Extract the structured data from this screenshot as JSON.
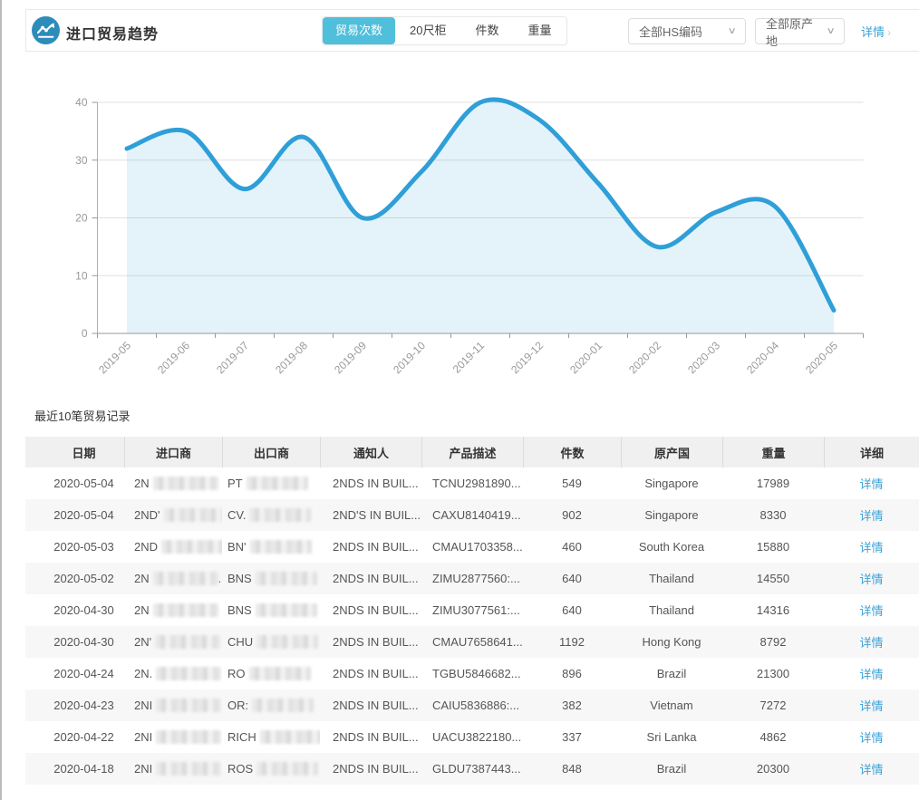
{
  "header": {
    "title": "进口贸易趋势",
    "tabs": [
      {
        "label": "贸易次数",
        "active": true
      },
      {
        "label": "20尺柜",
        "active": false
      },
      {
        "label": "件数",
        "active": false
      },
      {
        "label": "重量",
        "active": false
      }
    ],
    "hs_filter": "全部HS编码",
    "origin_filter": "全部原产地",
    "detail_link": "详情",
    "accent_color": "#4fbfdb",
    "icon_color": "#2d8cba"
  },
  "chart_data": {
    "type": "area",
    "title": "",
    "xlabel": "",
    "ylabel": "",
    "x": [
      "2019-05",
      "2019-06",
      "2019-07",
      "2019-08",
      "2019-09",
      "2019-10",
      "2019-11",
      "2019-12",
      "2020-01",
      "2020-02",
      "2020-03",
      "2020-04",
      "2020-05"
    ],
    "series": [
      {
        "name": "贸易次数",
        "values": [
          32,
          35,
          25,
          34,
          20,
          28,
          40,
          37,
          26,
          15,
          21,
          22,
          4
        ]
      }
    ],
    "ylim": [
      0,
      40
    ],
    "yticks": [
      0,
      10,
      20,
      30,
      40
    ],
    "grid": true,
    "legend_position": "none",
    "line_color": "#2f9fd8",
    "fill_color": "rgba(47,159,216,0.13)",
    "axis_color": "#999999",
    "grid_color": "#e0e0e0",
    "label_color": "#999999"
  },
  "table": {
    "section_title": "最近10笔贸易记录",
    "columns": [
      "日期",
      "进口商",
      "出口商",
      "通知人",
      "产品描述",
      "件数",
      "原产国",
      "重量",
      "详细"
    ],
    "detail_label": "详情",
    "rows": [
      {
        "date": "2020-05-04",
        "importer_prefix": "2N",
        "importer_suffix": "",
        "exporter_prefix": "PT",
        "notify": "2NDS IN BUIL...",
        "product": "TCNU2981890...",
        "pieces": "549",
        "origin": "Singapore",
        "weight": "17989"
      },
      {
        "date": "2020-05-04",
        "importer_prefix": "2ND'",
        "importer_suffix": "",
        "exporter_prefix": "CV.",
        "notify": "2ND'S IN BUIL...",
        "product": "CAXU8140419...",
        "pieces": "902",
        "origin": "Singapore",
        "weight": "8330"
      },
      {
        "date": "2020-05-03",
        "importer_prefix": "2ND",
        "importer_suffix": "",
        "exporter_prefix": "BN'",
        "notify": "2NDS IN BUIL...",
        "product": "CMAU1703358...",
        "pieces": "460",
        "origin": "South Korea",
        "weight": "15880"
      },
      {
        "date": "2020-05-02",
        "importer_prefix": "2N",
        "importer_suffix": ".",
        "exporter_prefix": "BNS",
        "notify": "2NDS IN BUIL...",
        "product": "ZIMU2877560:...",
        "pieces": "640",
        "origin": "Thailand",
        "weight": "14550"
      },
      {
        "date": "2020-04-30",
        "importer_prefix": "2N",
        "importer_suffix": "",
        "exporter_prefix": "BNS",
        "notify": "2NDS IN BUIL...",
        "product": "ZIMU3077561:...",
        "pieces": "640",
        "origin": "Thailand",
        "weight": "14316"
      },
      {
        "date": "2020-04-30",
        "importer_prefix": "2N'",
        "importer_suffix": "",
        "exporter_prefix": "CHU",
        "notify": "2NDS IN BUIL...",
        "product": "CMAU7658641...",
        "pieces": "1192",
        "origin": "Hong Kong",
        "weight": "8792"
      },
      {
        "date": "2020-04-24",
        "importer_prefix": "2N.",
        "importer_suffix": "",
        "exporter_prefix": "RO",
        "notify": "2NDS IN BUIL...",
        "product": "TGBU5846682...",
        "pieces": "896",
        "origin": "Brazil",
        "weight": "21300"
      },
      {
        "date": "2020-04-23",
        "importer_prefix": "2NI",
        "importer_suffix": "",
        "exporter_prefix": "OR:",
        "notify": "2NDS IN BUIL...",
        "product": "CAIU5836886:...",
        "pieces": "382",
        "origin": "Vietnam",
        "weight": "7272"
      },
      {
        "date": "2020-04-22",
        "importer_prefix": "2NI",
        "importer_suffix": "",
        "exporter_prefix": "RICH",
        "notify": "2NDS IN BUIL...",
        "product": "UACU3822180...",
        "pieces": "337",
        "origin": "Sri Lanka",
        "weight": "4862"
      },
      {
        "date": "2020-04-18",
        "importer_prefix": "2NI",
        "importer_suffix": ".",
        "exporter_prefix": "ROS",
        "notify": "2NDS IN BUIL...",
        "product": "GLDU7387443...",
        "pieces": "848",
        "origin": "Brazil",
        "weight": "20300"
      }
    ]
  }
}
